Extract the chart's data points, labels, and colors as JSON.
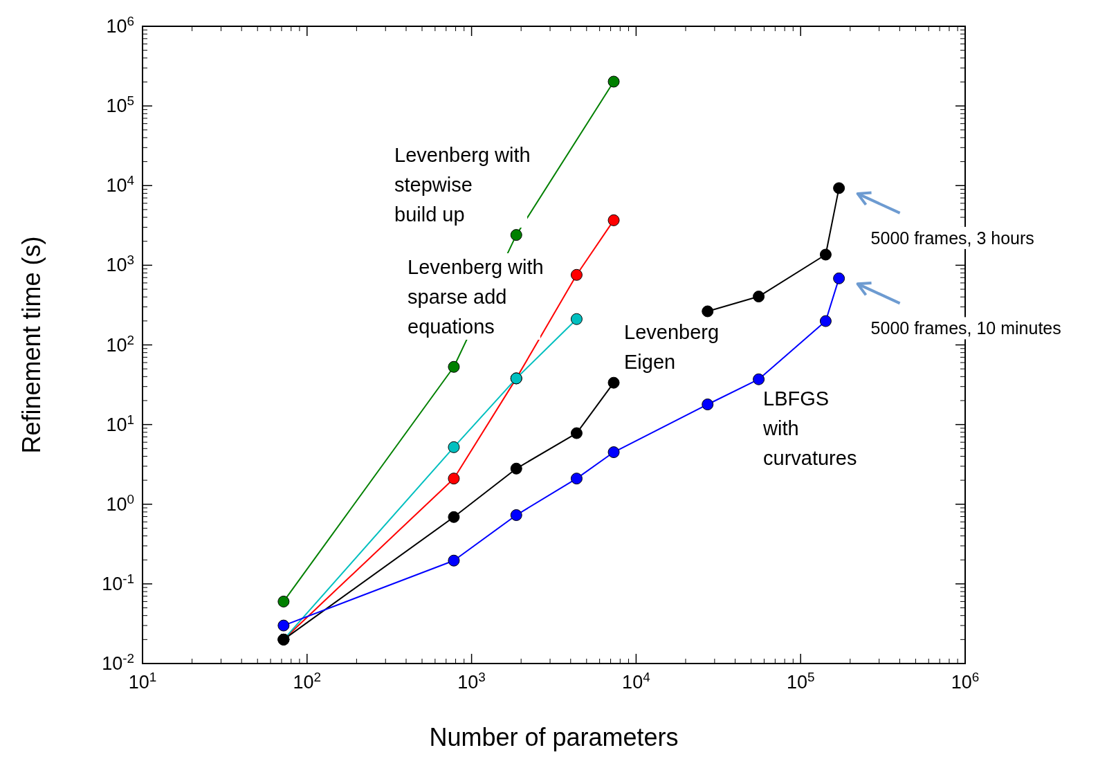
{
  "chart_data": {
    "type": "line",
    "xlabel": "Number of parameters",
    "ylabel": "Refinement time (s)",
    "log": "xy",
    "marker": "circle",
    "line_style": "solid",
    "xlim": [
      10,
      1000000
    ],
    "ylim": [
      0.01,
      1000000
    ],
    "xticks": [
      {
        "value": 10,
        "label": "10$^{1}$"
      },
      {
        "value": 100,
        "label": "10$^{2}$"
      },
      {
        "value": 1000,
        "label": "10$^{3}$"
      },
      {
        "value": 10000,
        "label": "10$^{4}$"
      },
      {
        "value": 100000,
        "label": "10$^{5}$"
      },
      {
        "value": 1000000,
        "label": "10$^{6}$"
      }
    ],
    "yticks": [
      {
        "value": 0.01,
        "label": "10$^{-2}$"
      },
      {
        "value": 0.1,
        "label": "10$^{-1}$"
      },
      {
        "value": 1,
        "label": "10$^{0}$"
      },
      {
        "value": 10,
        "label": "10$^{1}$"
      },
      {
        "value": 100,
        "label": "10$^{2}$"
      },
      {
        "value": 1000,
        "label": "10$^{3}$"
      },
      {
        "value": 10000,
        "label": "10$^{4}$"
      },
      {
        "value": 100000,
        "label": "10$^{5}$"
      },
      {
        "value": 1000000,
        "label": "10$^{6}$"
      }
    ],
    "series": [
      {
        "name": "Levenberg with stepwise build up",
        "color": "#008000",
        "x": [
          72,
          780,
          1870,
          7310
        ],
        "values": [
          0.06,
          53,
          2400,
          202000
        ]
      },
      {
        "color": "#ff0000",
        "x": [
          72,
          780,
          1870,
          4350,
          7310
        ],
        "values": [
          0.02,
          2.1,
          38,
          757,
          3670
        ]
      },
      {
        "name": "Levenberg with sparse add equations",
        "color": "#00bfbf",
        "x": [
          72,
          780,
          1870,
          4350
        ],
        "values": [
          0.02,
          5.2,
          38,
          211
        ]
      },
      {
        "name": "Levenberg Eigen",
        "color": "#000000",
        "x": [
          72,
          780,
          1870,
          4350,
          7310
        ],
        "values": [
          0.02,
          0.69,
          2.8,
          7.8,
          33.5
        ]
      },
      {
        "color": "#000000",
        "x": [
          27200,
          55600,
          142000,
          171000
        ],
        "values": [
          264,
          405,
          1360,
          9300
        ]
      },
      {
        "name": "LBFGS with curvatures",
        "color": "#0000ff",
        "x": [
          72,
          780,
          1870,
          4350,
          7310,
          27200,
          55600,
          142000,
          171000
        ],
        "values": [
          0.03,
          0.196,
          0.73,
          2.1,
          4.5,
          17.9,
          37,
          199,
          684
        ]
      }
    ],
    "annotations": [
      {
        "text": "5000 frames, 3 hours",
        "x": 171000,
        "y": 9300
      },
      {
        "text": "5000 frames, 10 minutes",
        "x": 171000,
        "y": 684
      }
    ]
  }
}
